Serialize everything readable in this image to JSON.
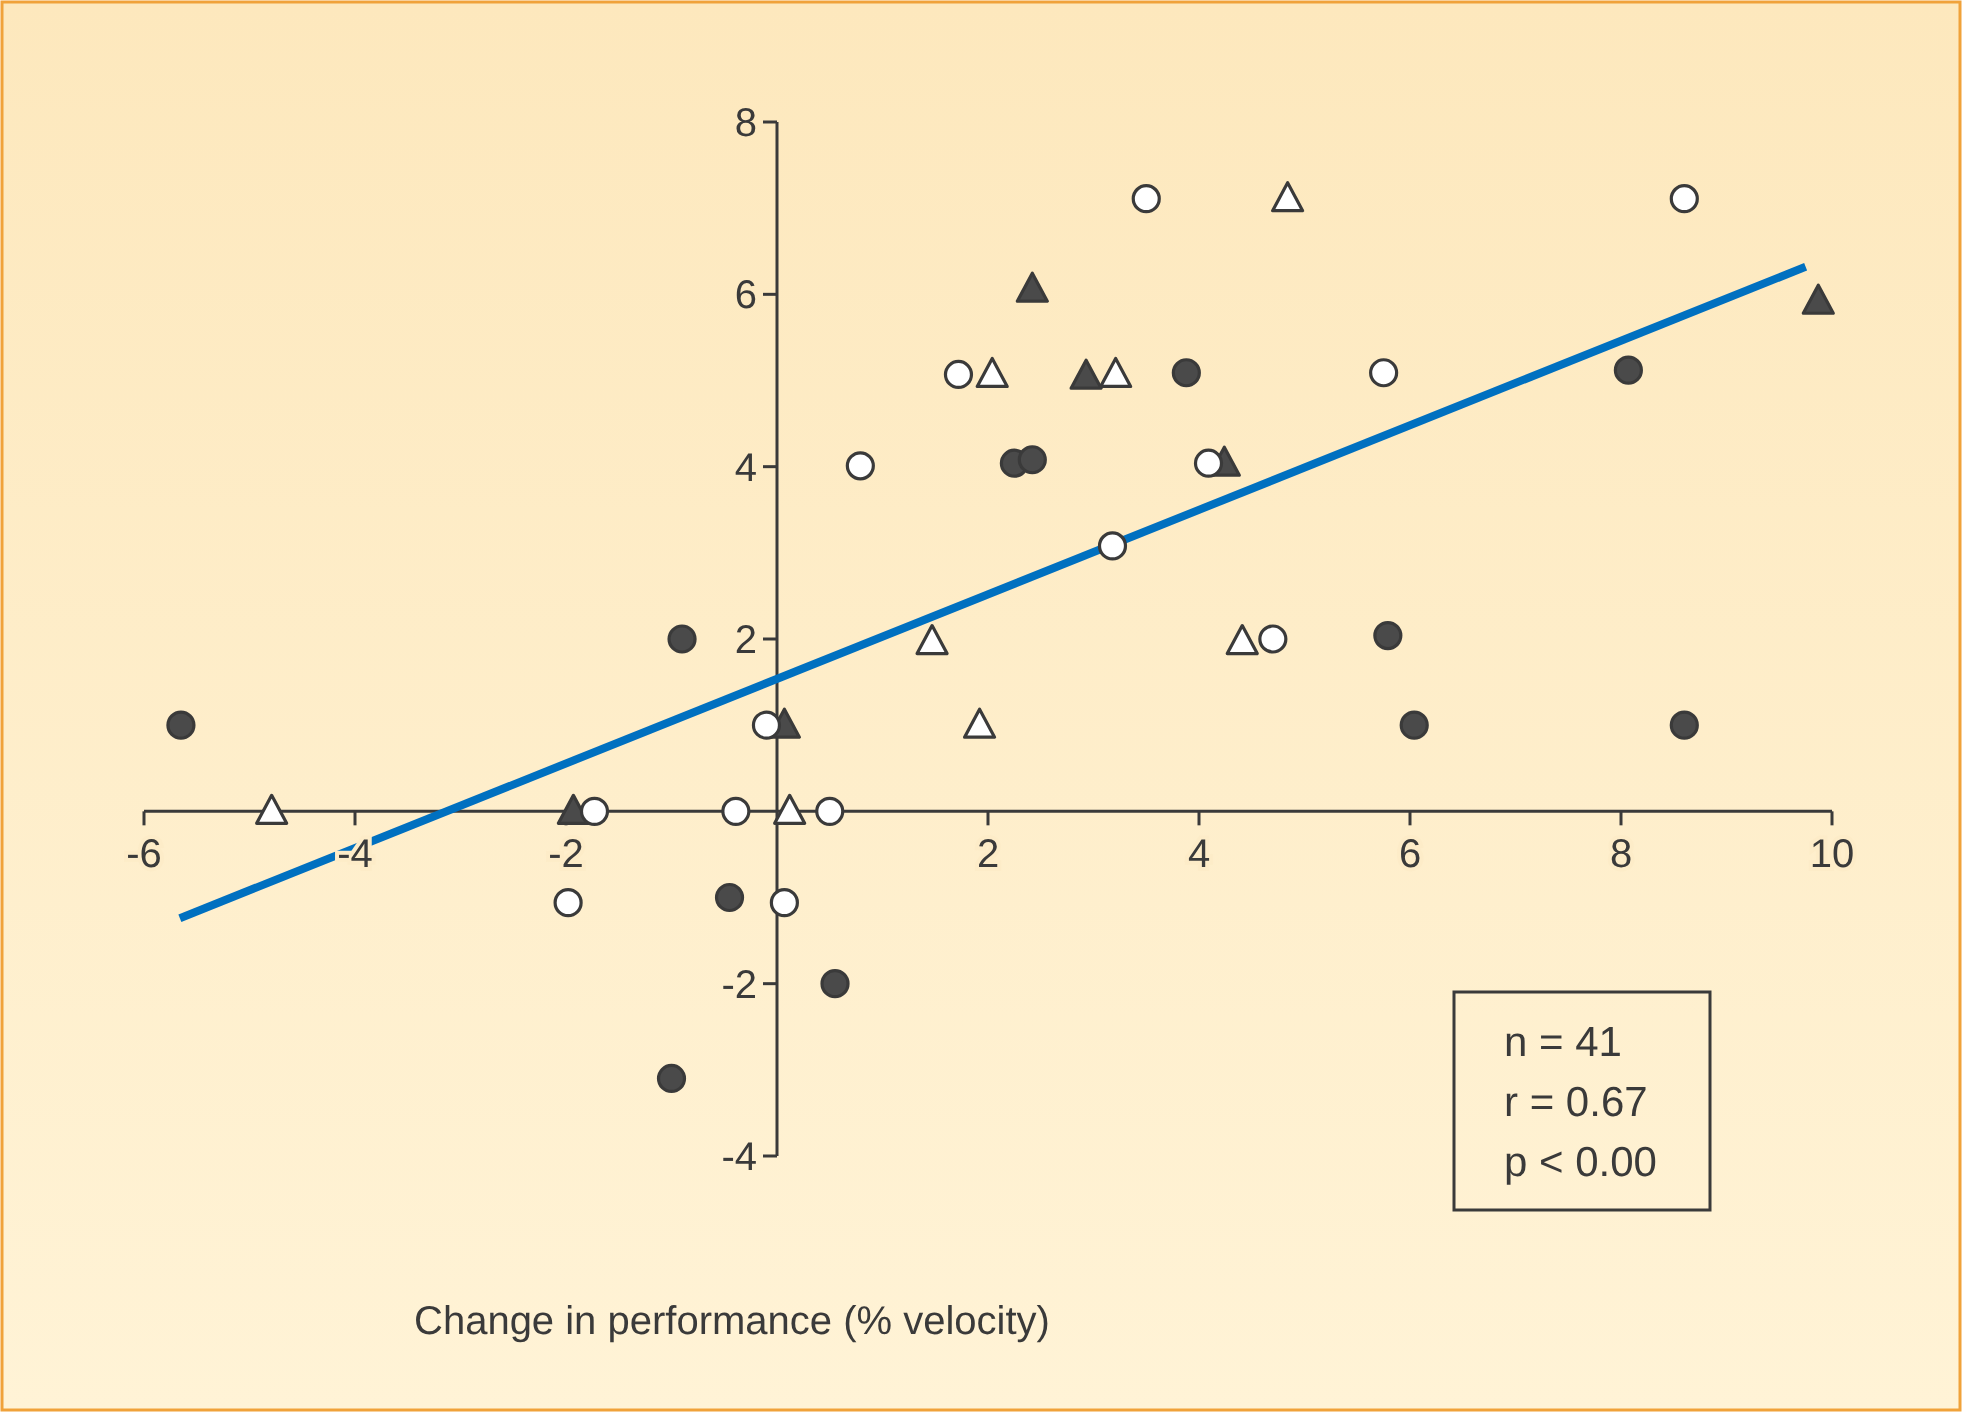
{
  "chart_data": {
    "type": "scatter",
    "xlabel": "Change in performance (% velocity)",
    "xlim": [
      -6,
      10
    ],
    "ylim": [
      -4,
      8
    ],
    "xticks": [
      -6,
      -4,
      -2,
      2,
      4,
      6,
      8,
      10
    ],
    "yticks": [
      -4,
      -2,
      2,
      4,
      6,
      8
    ],
    "grid": false,
    "series": [
      {
        "type": "scatter",
        "marker": "circle",
        "color": "#4a4a4a",
        "x": [
          -5.65,
          -0.9,
          -0.45,
          -1,
          0.55,
          2.25,
          2.42,
          3.88,
          5.79,
          6.04,
          8.07,
          8.6
        ],
        "values": [
          1,
          2,
          -1,
          -3.1,
          -2,
          4.04,
          4.08,
          5.09,
          2.04,
          1,
          5.12,
          1
        ]
      },
      {
        "type": "scatter",
        "marker": "triangle",
        "color": "#4a4a4a",
        "x": [
          -1.93,
          0.07,
          2.42,
          2.93,
          4.24,
          9.87
        ],
        "values": [
          0,
          1,
          6.06,
          5.05,
          4.04,
          5.92
        ]
      },
      {
        "type": "scatter",
        "marker": "circle",
        "color": "#ffffff",
        "x": [
          -1.98,
          -1.73,
          -0.39,
          -0.1,
          0.07,
          0.5,
          0.79,
          1.72,
          3.18,
          3.5,
          4.09,
          4.7,
          5.75,
          8.6
        ],
        "values": [
          -1.06,
          0,
          0,
          1,
          -1.06,
          0,
          4.01,
          5.07,
          3.08,
          7.11,
          4.04,
          2,
          5.09,
          7.11
        ]
      },
      {
        "type": "scatter",
        "marker": "triangle",
        "color": "#ffffff",
        "x": [
          -4.79,
          0.12,
          1.47,
          1.92,
          2.04,
          3.21,
          4.41,
          4.84
        ],
        "values": [
          0,
          0,
          1.97,
          1,
          5.07,
          5.07,
          1.97,
          7.11
        ]
      },
      {
        "type": "line",
        "color": "#0070c0",
        "line_style": "solid",
        "marker": "none",
        "x": [
          -5.66,
          9.75
        ],
        "values": [
          -1.24,
          6.32
        ]
      }
    ],
    "annotations": [
      "n = 41",
      "r = 0.67",
      "p < 0.00"
    ]
  }
}
